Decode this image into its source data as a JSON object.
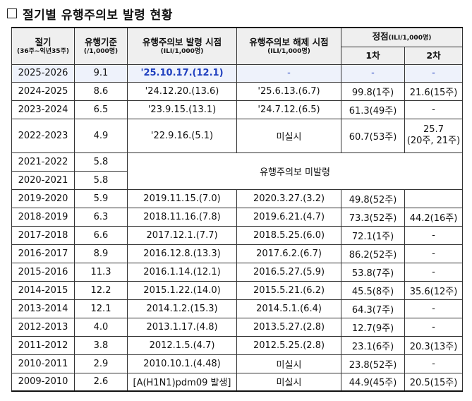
{
  "title": "절기별 유행주의보 발령 현황",
  "headers": {
    "season": "절기",
    "season_sub": "(36주~익년35주)",
    "threshold": "유행기준",
    "threshold_sub": "(/1,000명)",
    "onset": "유행주의보 발령 시점",
    "onset_sub": "(ILI/1,000명)",
    "release": "유행주의보 해제 시점",
    "release_sub": "(ILI/1,000명)",
    "peak": "정점",
    "peak_sub": "(ILI/1,000명)",
    "peak1": "1차",
    "peak2": "2차"
  },
  "rows": [
    {
      "season": "2025-2026",
      "threshold": "9.1",
      "onset": "'25.10.17.(12.1)",
      "release": "-",
      "peak1": "-",
      "peak2": "-"
    },
    {
      "season": "2024-2025",
      "threshold": "8.6",
      "onset": "'24.12.20.(13.6)",
      "release": "'25.6.13.(6.7)",
      "peak1": "99.8(1주)",
      "peak2": "21.6(15주)"
    },
    {
      "season": "2023-2024",
      "threshold": "6.5",
      "onset": "'23.9.15.(13.1)",
      "release": "'24.7.12.(6.5)",
      "peak1": "61.3(49주)",
      "peak2": "-"
    },
    {
      "season": "2022-2023",
      "threshold": "4.9",
      "onset": "'22.9.16.(5.1)",
      "release": "미실시",
      "peak1": "60.7(53주)",
      "peak2_line1": "25.7",
      "peak2_line2": "(20주, 21주)"
    },
    {
      "season": "2021-2022",
      "threshold": "5.8",
      "merged": "유행주의보 미발령"
    },
    {
      "season": "2020-2021",
      "threshold": "5.8"
    },
    {
      "season": "2019-2020",
      "threshold": "5.9",
      "onset": "2019.11.15.(7.0)",
      "release": "2020.3.27.(3.2)",
      "peak1": "49.8(52주)",
      "peak2": ""
    },
    {
      "season": "2018-2019",
      "threshold": "6.3",
      "onset": "2018.11.16.(7.8)",
      "release": "2019.6.21.(4.7)",
      "peak1": "73.3(52주)",
      "peak2": "44.2(16주)"
    },
    {
      "season": "2017-2018",
      "threshold": "6.6",
      "onset": "2017.12.1.(7.7)",
      "release": "2018.5.25.(6.0)",
      "peak1": "72.1(1주)",
      "peak2": "-"
    },
    {
      "season": "2016-2017",
      "threshold": "8.9",
      "onset": "2016.12.8.(13.3)",
      "release": "2017.6.2.(6.7)",
      "peak1": "86.2(52주)",
      "peak2": "-"
    },
    {
      "season": "2015-2016",
      "threshold": "11.3",
      "onset": "2016.1.14.(12.1)",
      "release": "2016.5.27.(5.9)",
      "peak1": "53.8(7주)",
      "peak2": "-"
    },
    {
      "season": "2014-2015",
      "threshold": "12.2",
      "onset": "2015.1.22.(14.0)",
      "release": "2015.5.21.(6.2)",
      "peak1": "45.5(8주)",
      "peak2": "35.6(12주)"
    },
    {
      "season": "2013-2014",
      "threshold": "12.1",
      "onset": "2014.1.2.(15.3)",
      "release": "2014.5.1.(6.4)",
      "peak1": "64.3(7주)",
      "peak2": "-"
    },
    {
      "season": "2012-2013",
      "threshold": "4.0",
      "onset": "2013.1.17.(4.8)",
      "release": "2013.5.27.(2.8)",
      "peak1": "12.7(9주)",
      "peak2": "-"
    },
    {
      "season": "2011-2012",
      "threshold": "3.8",
      "onset": "2012.1.5.(4.7)",
      "release": "2012.5.25.(2.8)",
      "peak1": "23.1(6주)",
      "peak2": "20.3(13주)"
    },
    {
      "season": "2010-2011",
      "threshold": "2.9",
      "onset": "2010.10.1.(4.48)",
      "release": "미실시",
      "peak1": "23.8(52주)",
      "peak2": "-"
    },
    {
      "season": "2009-2010",
      "threshold": "2.6",
      "onset": "[A(H1N1)pdm09 발생]",
      "release": "미실시",
      "peak1": "44.9(45주)",
      "peak2": "20.5(15주)"
    }
  ]
}
